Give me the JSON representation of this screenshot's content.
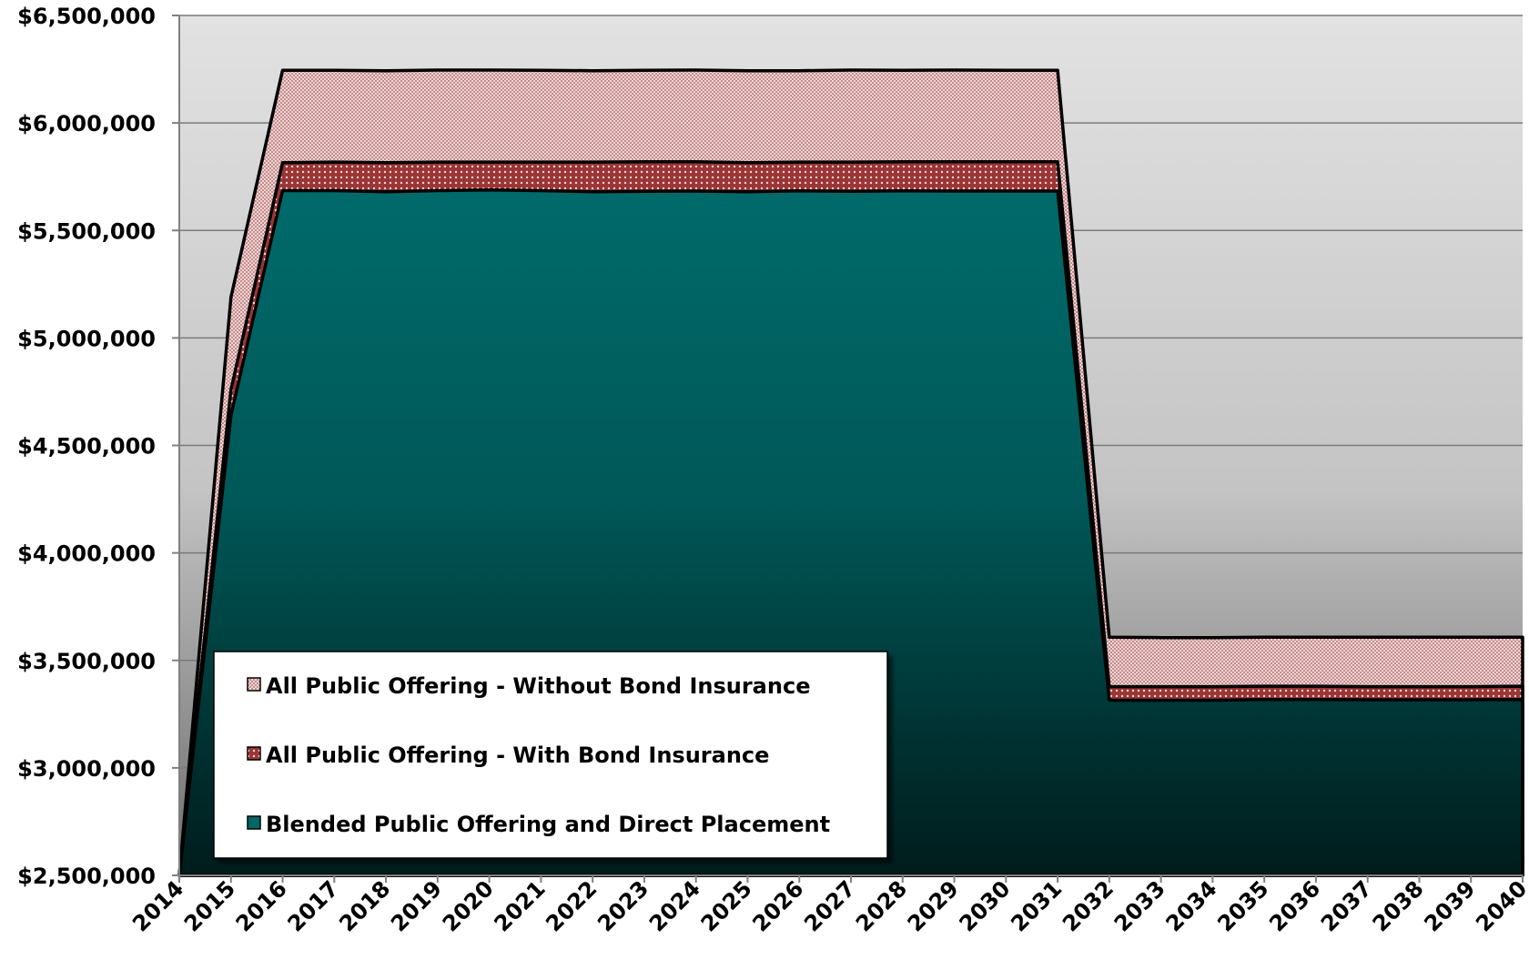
{
  "chart_data": {
    "type": "area",
    "stacked": true,
    "title": "",
    "xlabel": "",
    "ylabel": "",
    "x": [
      "2014",
      "2015",
      "2016",
      "2017",
      "2018",
      "2019",
      "2020",
      "2021",
      "2022",
      "2023",
      "2024",
      "2025",
      "2026",
      "2027",
      "2028",
      "2029",
      "2030",
      "2031",
      "2032",
      "2033",
      "2034",
      "2035",
      "2036",
      "2037",
      "2038",
      "2039",
      "2040"
    ],
    "ylim": [
      2500000,
      6500000
    ],
    "yticks": [
      "$2,500,000",
      "$3,000,000",
      "$3,500,000",
      "$4,000,000",
      "$4,500,000",
      "$5,000,000",
      "$5,500,000",
      "$6,000,000",
      "$6,500,000"
    ],
    "ytick_values": [
      2500000,
      3000000,
      3500000,
      4000000,
      4500000,
      5000000,
      5500000,
      6000000,
      6500000
    ],
    "grid": true,
    "legend_position": "bottom-left",
    "series": [
      {
        "name": "Blended Public Offering and Direct Placement",
        "color": "#006b6b",
        "pattern": "solid",
        "values": [
          2500000,
          4640000,
          5685000,
          5685000,
          5680000,
          5685000,
          5688000,
          5685000,
          5680000,
          5682000,
          5683000,
          5680000,
          5684000,
          5682000,
          5684000,
          5683000,
          5683000,
          5683000,
          3315000,
          3315000,
          3315000,
          3318000,
          3318000,
          3317000,
          3317000,
          3317000,
          3318000
        ]
      },
      {
        "name": "All Public Offering - With Bond Insurance",
        "color": "#9b3a3a",
        "pattern": "dots",
        "values": [
          2500000,
          4760000,
          5815000,
          5818000,
          5815000,
          5818000,
          5818000,
          5818000,
          5818000,
          5820000,
          5820000,
          5815000,
          5818000,
          5818000,
          5820000,
          5820000,
          5820000,
          5820000,
          3378000,
          3378000,
          3378000,
          3380000,
          3380000,
          3378000,
          3378000,
          3378000,
          3380000
        ]
      },
      {
        "name": "All Public Offering - Without Bond Insurance",
        "color": "#d9a7a7",
        "pattern": "checker",
        "values": [
          2500000,
          5190000,
          6245000,
          6245000,
          6243000,
          6246000,
          6246000,
          6245000,
          6243000,
          6245000,
          6246000,
          6243000,
          6243000,
          6246000,
          6245000,
          6246000,
          6245000,
          6245000,
          3608000,
          3606000,
          3606000,
          3608000,
          3608000,
          3608000,
          3608000,
          3608000,
          3608000
        ]
      }
    ],
    "legend": [
      {
        "label": "All Public Offering - Without Bond Insurance",
        "pattern": "checker"
      },
      {
        "label": "All Public Offering - With Bond Insurance",
        "pattern": "dots"
      },
      {
        "label": "Blended Public Offering and Direct Placement",
        "pattern": "solid"
      }
    ]
  }
}
